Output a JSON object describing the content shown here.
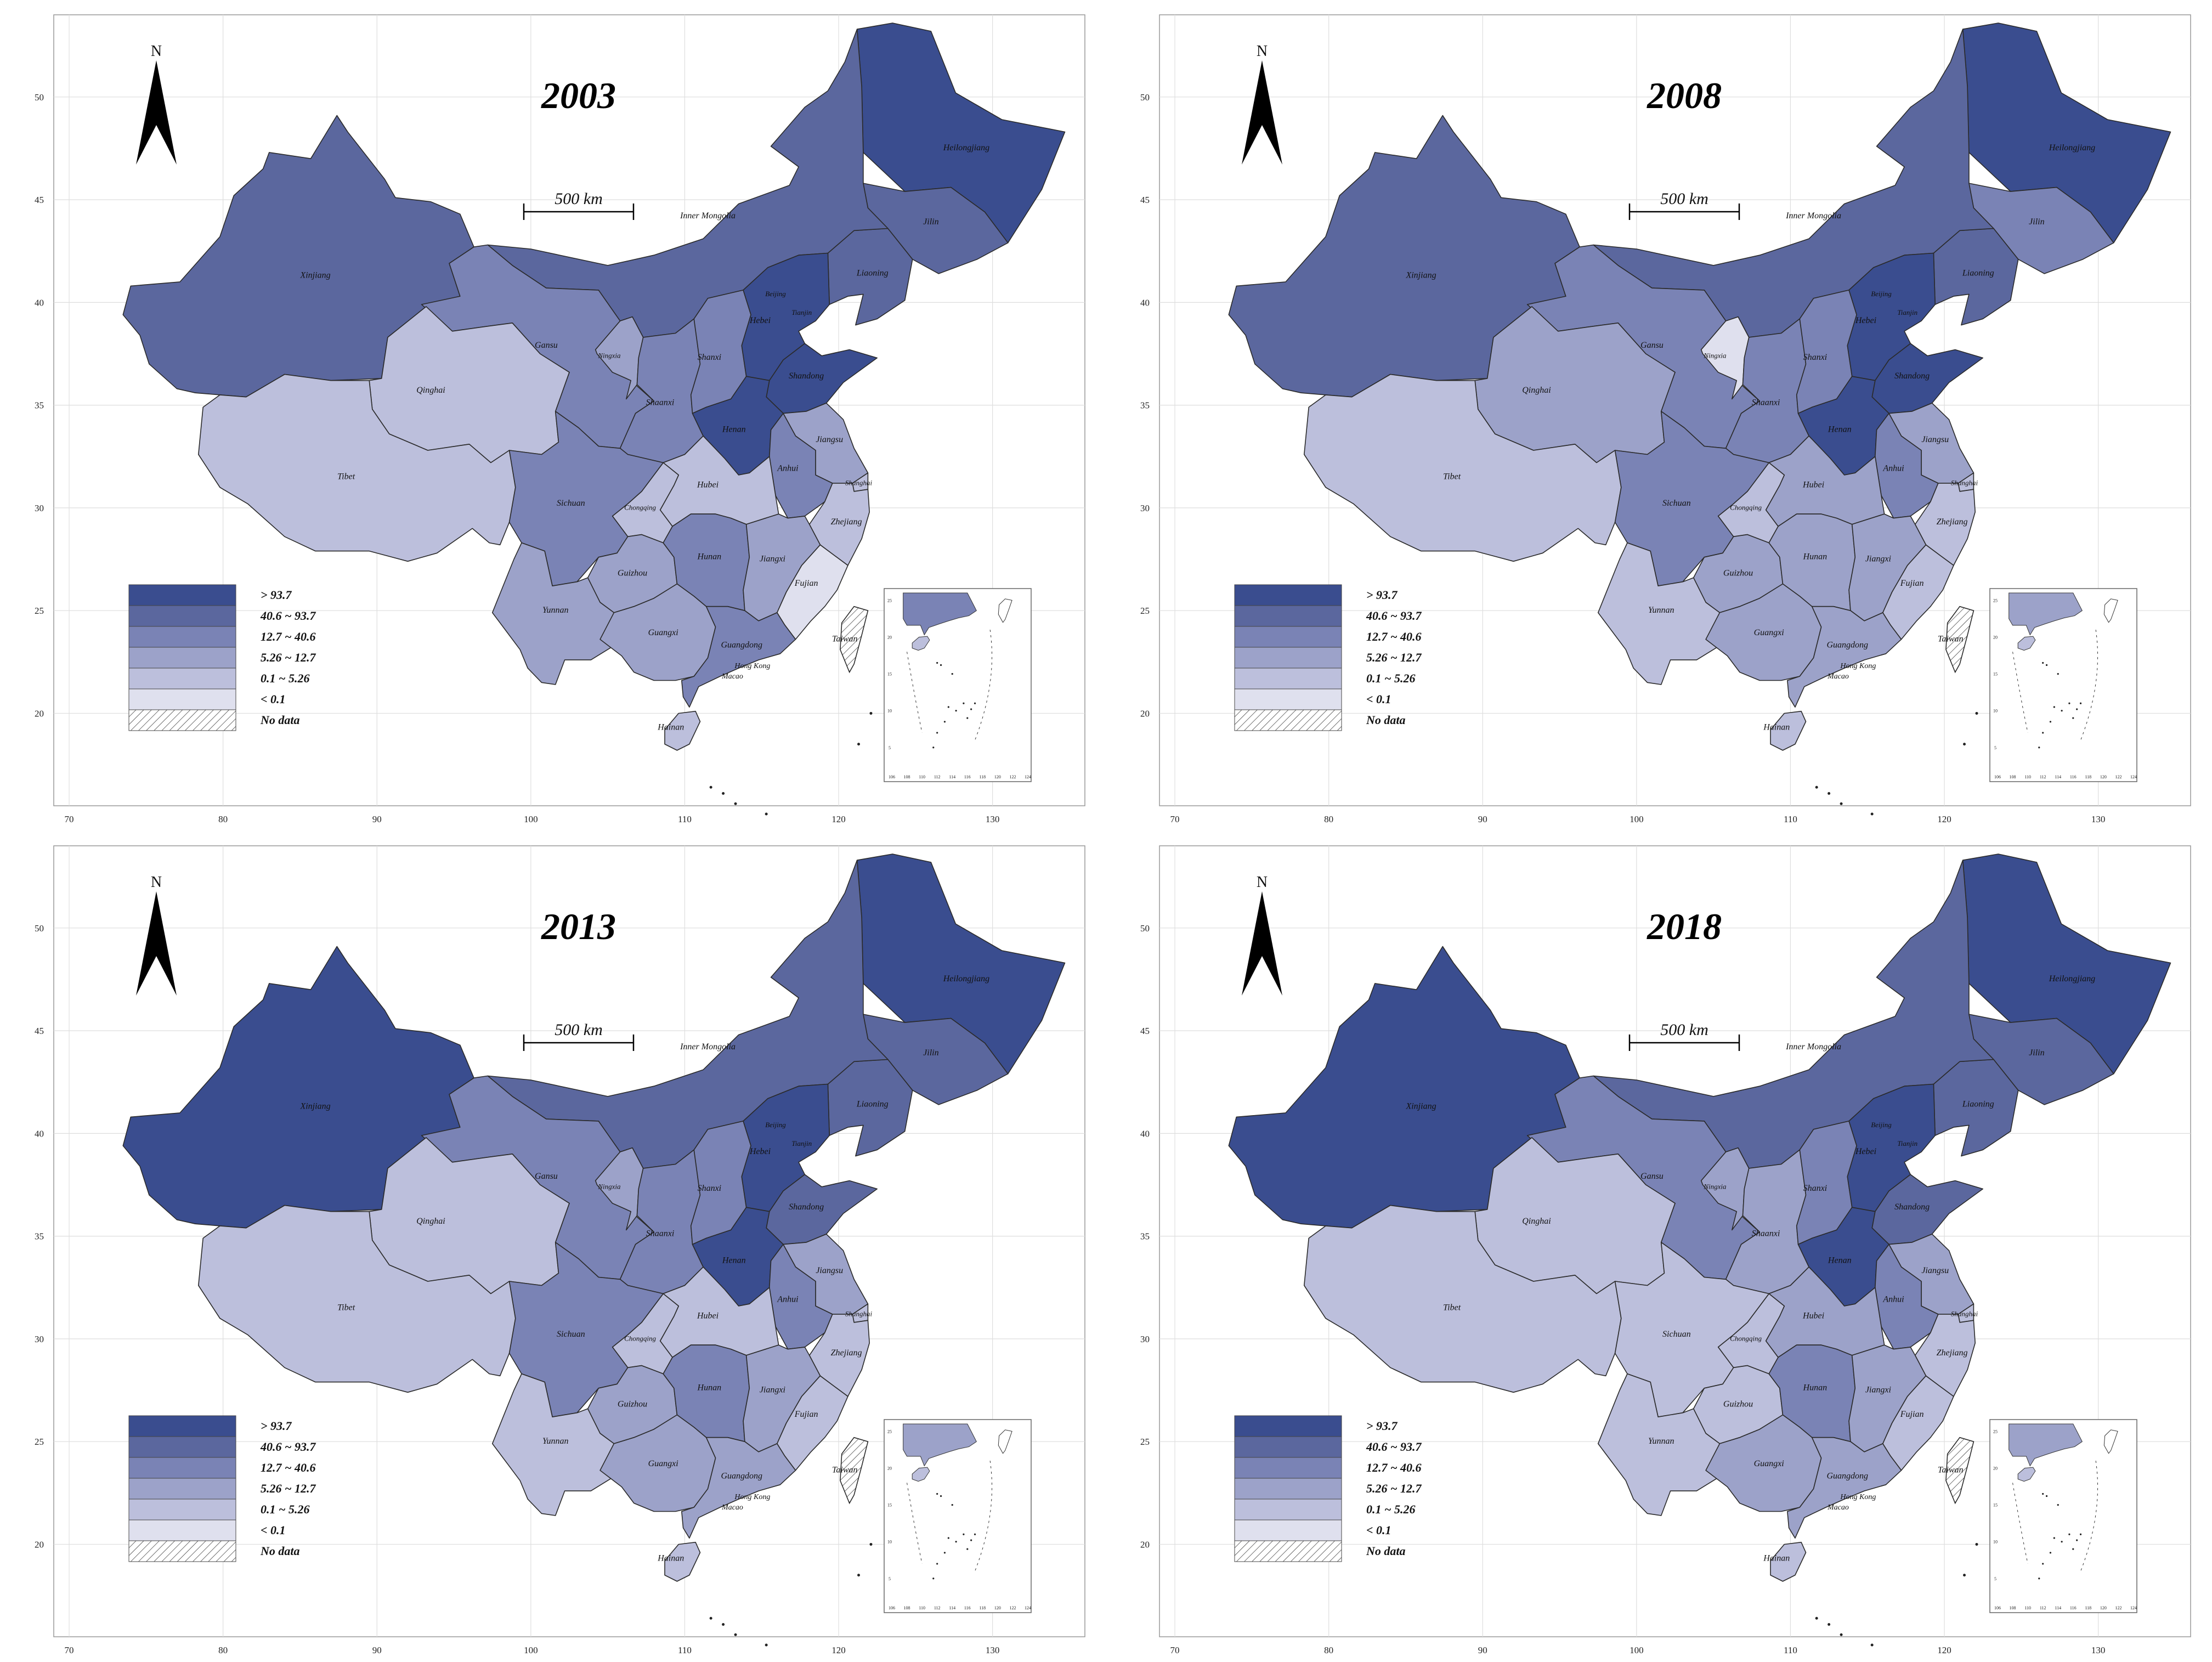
{
  "map": {
    "north_label": "N",
    "scale_label": "500 km",
    "x_ticks": [
      "70",
      "80",
      "90",
      "100",
      "110",
      "120",
      "130"
    ],
    "y_ticks": [
      "20",
      "25",
      "30",
      "35",
      "40",
      "45",
      "50"
    ],
    "inset_x_ticks": [
      "106",
      "108",
      "110",
      "112",
      "114",
      "116",
      "118",
      "120",
      "122",
      "124"
    ],
    "inset_y_ticks": [
      "5",
      "10",
      "15",
      "20",
      "25"
    ],
    "legend": [
      {
        "label": "> 93.7",
        "color": "#3a4d8f"
      },
      {
        "label": "40.6 ~ 93.7",
        "color": "#5b679e"
      },
      {
        "label": "12.7 ~ 40.6",
        "color": "#7a83b5"
      },
      {
        "label": "5.26 ~ 12.7",
        "color": "#9ca2c9"
      },
      {
        "label": "0.1 ~ 5.26",
        "color": "#bcbfdc"
      },
      {
        "label": "< 0.1",
        "color": "#dfe0ee"
      },
      {
        "label": "No data",
        "color": "hatch"
      }
    ],
    "labels": {
      "heilongjiang": "Heilongjiang",
      "jilin": "Jilin",
      "liaoning": "Liaoning",
      "inner_mongolia": "Inner Mongolia",
      "xinjiang": "Xinjiang",
      "gansu": "Gansu",
      "qinghai": "Qinghai",
      "tibet": "Tibet",
      "ningxia": "Ningxia",
      "shaanxi": "Shaanxi",
      "shanxi": "Shanxi",
      "beijing": "Beijing",
      "tianjin": "Tianjin",
      "hebei": "Hebei",
      "shandong": "Shandong",
      "henan": "Henan",
      "jiangsu": "Jiangsu",
      "anhui": "Anhui",
      "shanghai": "Shanghai",
      "hubei": "Hubei",
      "sichuan": "Sichuan",
      "chongqing": "Chongqing",
      "zhejiang": "Zhejiang",
      "hunan": "Hunan",
      "jiangxi": "Jiangxi",
      "guizhou": "Guizhou",
      "fujian": "Fujian",
      "yunnan": "Yunnan",
      "guangxi": "Guangxi",
      "guangdong": "Guangdong",
      "taiwan": "Taiwan",
      "hong_kong": "Hong Kong",
      "macao": "Macao",
      "hainan": "Hainan"
    }
  },
  "panels": [
    {
      "year": "2003",
      "classes": {
        "heilongjiang": 0,
        "jilin": 1,
        "liaoning": 1,
        "inner_mongolia": 1,
        "xinjiang": 1,
        "gansu": 2,
        "qinghai": 4,
        "tibet": 4,
        "ningxia": 3,
        "shaanxi": 2,
        "shanxi": 2,
        "beijing": 0,
        "tianjin": 0,
        "hebei": 0,
        "shandong": 0,
        "henan": 0,
        "jiangsu": 3,
        "anhui": 2,
        "shanghai": 4,
        "hubei": 4,
        "sichuan": 2,
        "chongqing": 4,
        "zhejiang": 4,
        "hunan": 2,
        "jiangxi": 3,
        "guizhou": 3,
        "fujian": 5,
        "yunnan": 3,
        "guangxi": 3,
        "guangdong": 2,
        "hainan": 4
      }
    },
    {
      "year": "2008",
      "classes": {
        "heilongjiang": 0,
        "jilin": 2,
        "liaoning": 1,
        "inner_mongolia": 1,
        "xinjiang": 1,
        "gansu": 2,
        "qinghai": 3,
        "tibet": 4,
        "ningxia": 5,
        "shaanxi": 2,
        "shanxi": 2,
        "beijing": 0,
        "tianjin": 0,
        "hebei": 0,
        "shandong": 0,
        "henan": 0,
        "jiangsu": 3,
        "anhui": 2,
        "shanghai": 4,
        "hubei": 3,
        "sichuan": 2,
        "chongqing": 4,
        "zhejiang": 4,
        "hunan": 3,
        "jiangxi": 3,
        "guizhou": 3,
        "fujian": 4,
        "yunnan": 4,
        "guangxi": 3,
        "guangdong": 3,
        "hainan": 4
      }
    },
    {
      "year": "2013",
      "classes": {
        "heilongjiang": 0,
        "jilin": 1,
        "liaoning": 1,
        "inner_mongolia": 1,
        "xinjiang": 0,
        "gansu": 2,
        "qinghai": 4,
        "tibet": 4,
        "ningxia": 3,
        "shaanxi": 2,
        "shanxi": 2,
        "beijing": 0,
        "tianjin": 0,
        "hebei": 0,
        "shandong": 1,
        "henan": 0,
        "jiangsu": 3,
        "anhui": 2,
        "shanghai": 4,
        "hubei": 4,
        "sichuan": 2,
        "chongqing": 4,
        "zhejiang": 4,
        "hunan": 2,
        "jiangxi": 3,
        "guizhou": 3,
        "fujian": 4,
        "yunnan": 4,
        "guangxi": 3,
        "guangdong": 3,
        "hainan": 4
      }
    },
    {
      "year": "2018",
      "classes": {
        "heilongjiang": 0,
        "jilin": 1,
        "liaoning": 1,
        "inner_mongolia": 1,
        "xinjiang": 0,
        "gansu": 2,
        "qinghai": 4,
        "tibet": 4,
        "ningxia": 3,
        "shaanxi": 3,
        "shanxi": 2,
        "beijing": 0,
        "tianjin": 0,
        "hebei": 0,
        "shandong": 1,
        "henan": 0,
        "jiangsu": 3,
        "anhui": 2,
        "shanghai": 4,
        "hubei": 3,
        "sichuan": 4,
        "chongqing": 4,
        "zhejiang": 4,
        "hunan": 2,
        "jiangxi": 3,
        "guizhou": 4,
        "fujian": 4,
        "yunnan": 4,
        "guangxi": 3,
        "guangdong": 3,
        "hainan": 4
      }
    }
  ]
}
